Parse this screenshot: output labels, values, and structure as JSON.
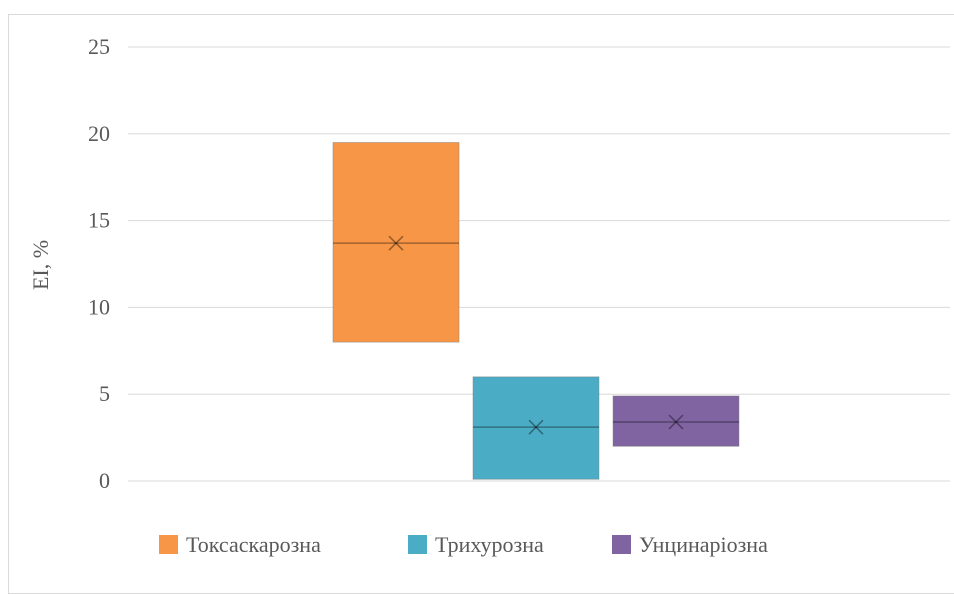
{
  "chart_data": {
    "type": "box",
    "title": "",
    "xlabel": "",
    "ylabel": "EI, %",
    "ylim": [
      0,
      25
    ],
    "yticks": [
      0,
      5,
      10,
      15,
      20,
      25
    ],
    "grid": true,
    "legend_position": "bottom",
    "series": [
      {
        "name": "Токсаскарозна",
        "q1": 8.0,
        "median": 13.7,
        "q3": 19.5,
        "mean": 13.7,
        "color": "#F79646"
      },
      {
        "name": "Трихурозна",
        "q1": 0.1,
        "median": 3.1,
        "q3": 6.0,
        "mean": 3.1,
        "color": "#4BACC6"
      },
      {
        "name": "Унцинаріозна",
        "q1": 2.0,
        "median": 3.4,
        "q3": 4.9,
        "mean": 3.4,
        "color": "#8064A2"
      }
    ]
  }
}
